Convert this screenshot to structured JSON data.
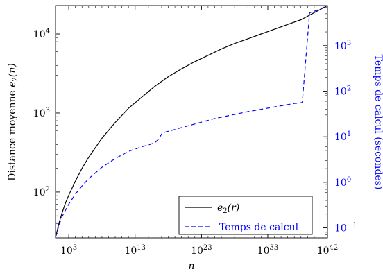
{
  "chart_data": {
    "type": "line",
    "x_axis": {
      "label": "n",
      "scale": "log",
      "range_log10": [
        1,
        42
      ],
      "ticks": [
        {
          "base": "10",
          "exp": "3",
          "value_log10": 3
        },
        {
          "base": "10",
          "exp": "13",
          "value_log10": 13
        },
        {
          "base": "10",
          "exp": "23",
          "value_log10": 23
        },
        {
          "base": "10",
          "exp": "33",
          "value_log10": 33
        },
        {
          "base": "10",
          "exp": "42",
          "value_log10": 42
        }
      ]
    },
    "y_left": {
      "label": "Distance moyenne e₂(n)",
      "label_parts": {
        "main": "Distance moyenne ",
        "sym": "e",
        "sub": "2",
        "arg": "(n)"
      },
      "scale": "log",
      "range_log10": [
        1.42,
        4.36
      ],
      "ticks": [
        {
          "base": "10",
          "exp": "2",
          "value_log10": 2
        },
        {
          "base": "10",
          "exp": "3",
          "value_log10": 3
        },
        {
          "base": "10",
          "exp": "4",
          "value_log10": 4
        }
      ]
    },
    "y_right": {
      "label": "Temps de calcul (secondes)",
      "scale": "log",
      "color": "#0000ff",
      "range_log10": [
        -1.22,
        3.88
      ],
      "ticks": [
        {
          "base": "10",
          "exp": "−1",
          "value_log10": -1
        },
        {
          "base": "10",
          "exp": "0",
          "value_log10": 0
        },
        {
          "base": "10",
          "exp": "1",
          "value_log10": 1
        },
        {
          "base": "10",
          "exp": "2",
          "value_log10": 2
        },
        {
          "base": "10",
          "exp": "3",
          "value_log10": 3
        }
      ]
    },
    "series": [
      {
        "name": "e₂(r)",
        "name_parts": {
          "sym": "e",
          "sub": "2",
          "arg": "(r)"
        },
        "axis": "left",
        "color": "#000000",
        "style": "solid",
        "points_log10": [
          [
            1,
            1.42
          ],
          [
            1.5,
            1.6
          ],
          [
            2,
            1.74
          ],
          [
            2.5,
            1.86
          ],
          [
            3,
            1.96
          ],
          [
            4,
            2.14
          ],
          [
            5,
            2.3
          ],
          [
            6,
            2.44
          ],
          [
            8,
            2.68
          ],
          [
            10,
            2.88
          ],
          [
            12,
            3.06
          ],
          [
            14,
            3.2
          ],
          [
            16,
            3.34
          ],
          [
            18,
            3.46
          ],
          [
            20,
            3.56
          ],
          [
            22,
            3.65
          ],
          [
            24,
            3.73
          ],
          [
            26,
            3.81
          ],
          [
            28,
            3.88
          ],
          [
            30,
            3.94
          ],
          [
            32,
            4.0
          ],
          [
            34,
            4.06
          ],
          [
            36,
            4.12
          ],
          [
            38,
            4.18
          ],
          [
            40,
            4.27
          ],
          [
            42,
            4.36
          ]
        ]
      },
      {
        "name": "Temps de calcul",
        "axis": "right",
        "color": "#0000ff",
        "style": "dashed",
        "points_log10": [
          [
            1,
            -1.22
          ],
          [
            1.5,
            -0.95
          ],
          [
            2,
            -0.75
          ],
          [
            3,
            -0.48
          ],
          [
            4,
            -0.26
          ],
          [
            5,
            -0.08
          ],
          [
            6,
            0.08
          ],
          [
            8,
            0.33
          ],
          [
            10,
            0.52
          ],
          [
            12,
            0.68
          ],
          [
            14,
            0.78
          ],
          [
            15,
            0.82
          ],
          [
            16,
            0.87
          ],
          [
            16.5,
            0.94
          ],
          [
            17,
            1.06
          ],
          [
            17.5,
            1.1
          ],
          [
            20,
            1.2
          ],
          [
            25,
            1.4
          ],
          [
            30,
            1.55
          ],
          [
            35,
            1.68
          ],
          [
            37,
            1.73
          ],
          [
            38.2,
            1.75
          ],
          [
            39.3,
            3.72
          ],
          [
            40.5,
            3.78
          ],
          [
            42,
            3.88
          ]
        ]
      }
    ],
    "legend": {
      "position": "bottom-right",
      "entries": [
        "e₂(r)",
        "Temps de calcul"
      ]
    }
  }
}
